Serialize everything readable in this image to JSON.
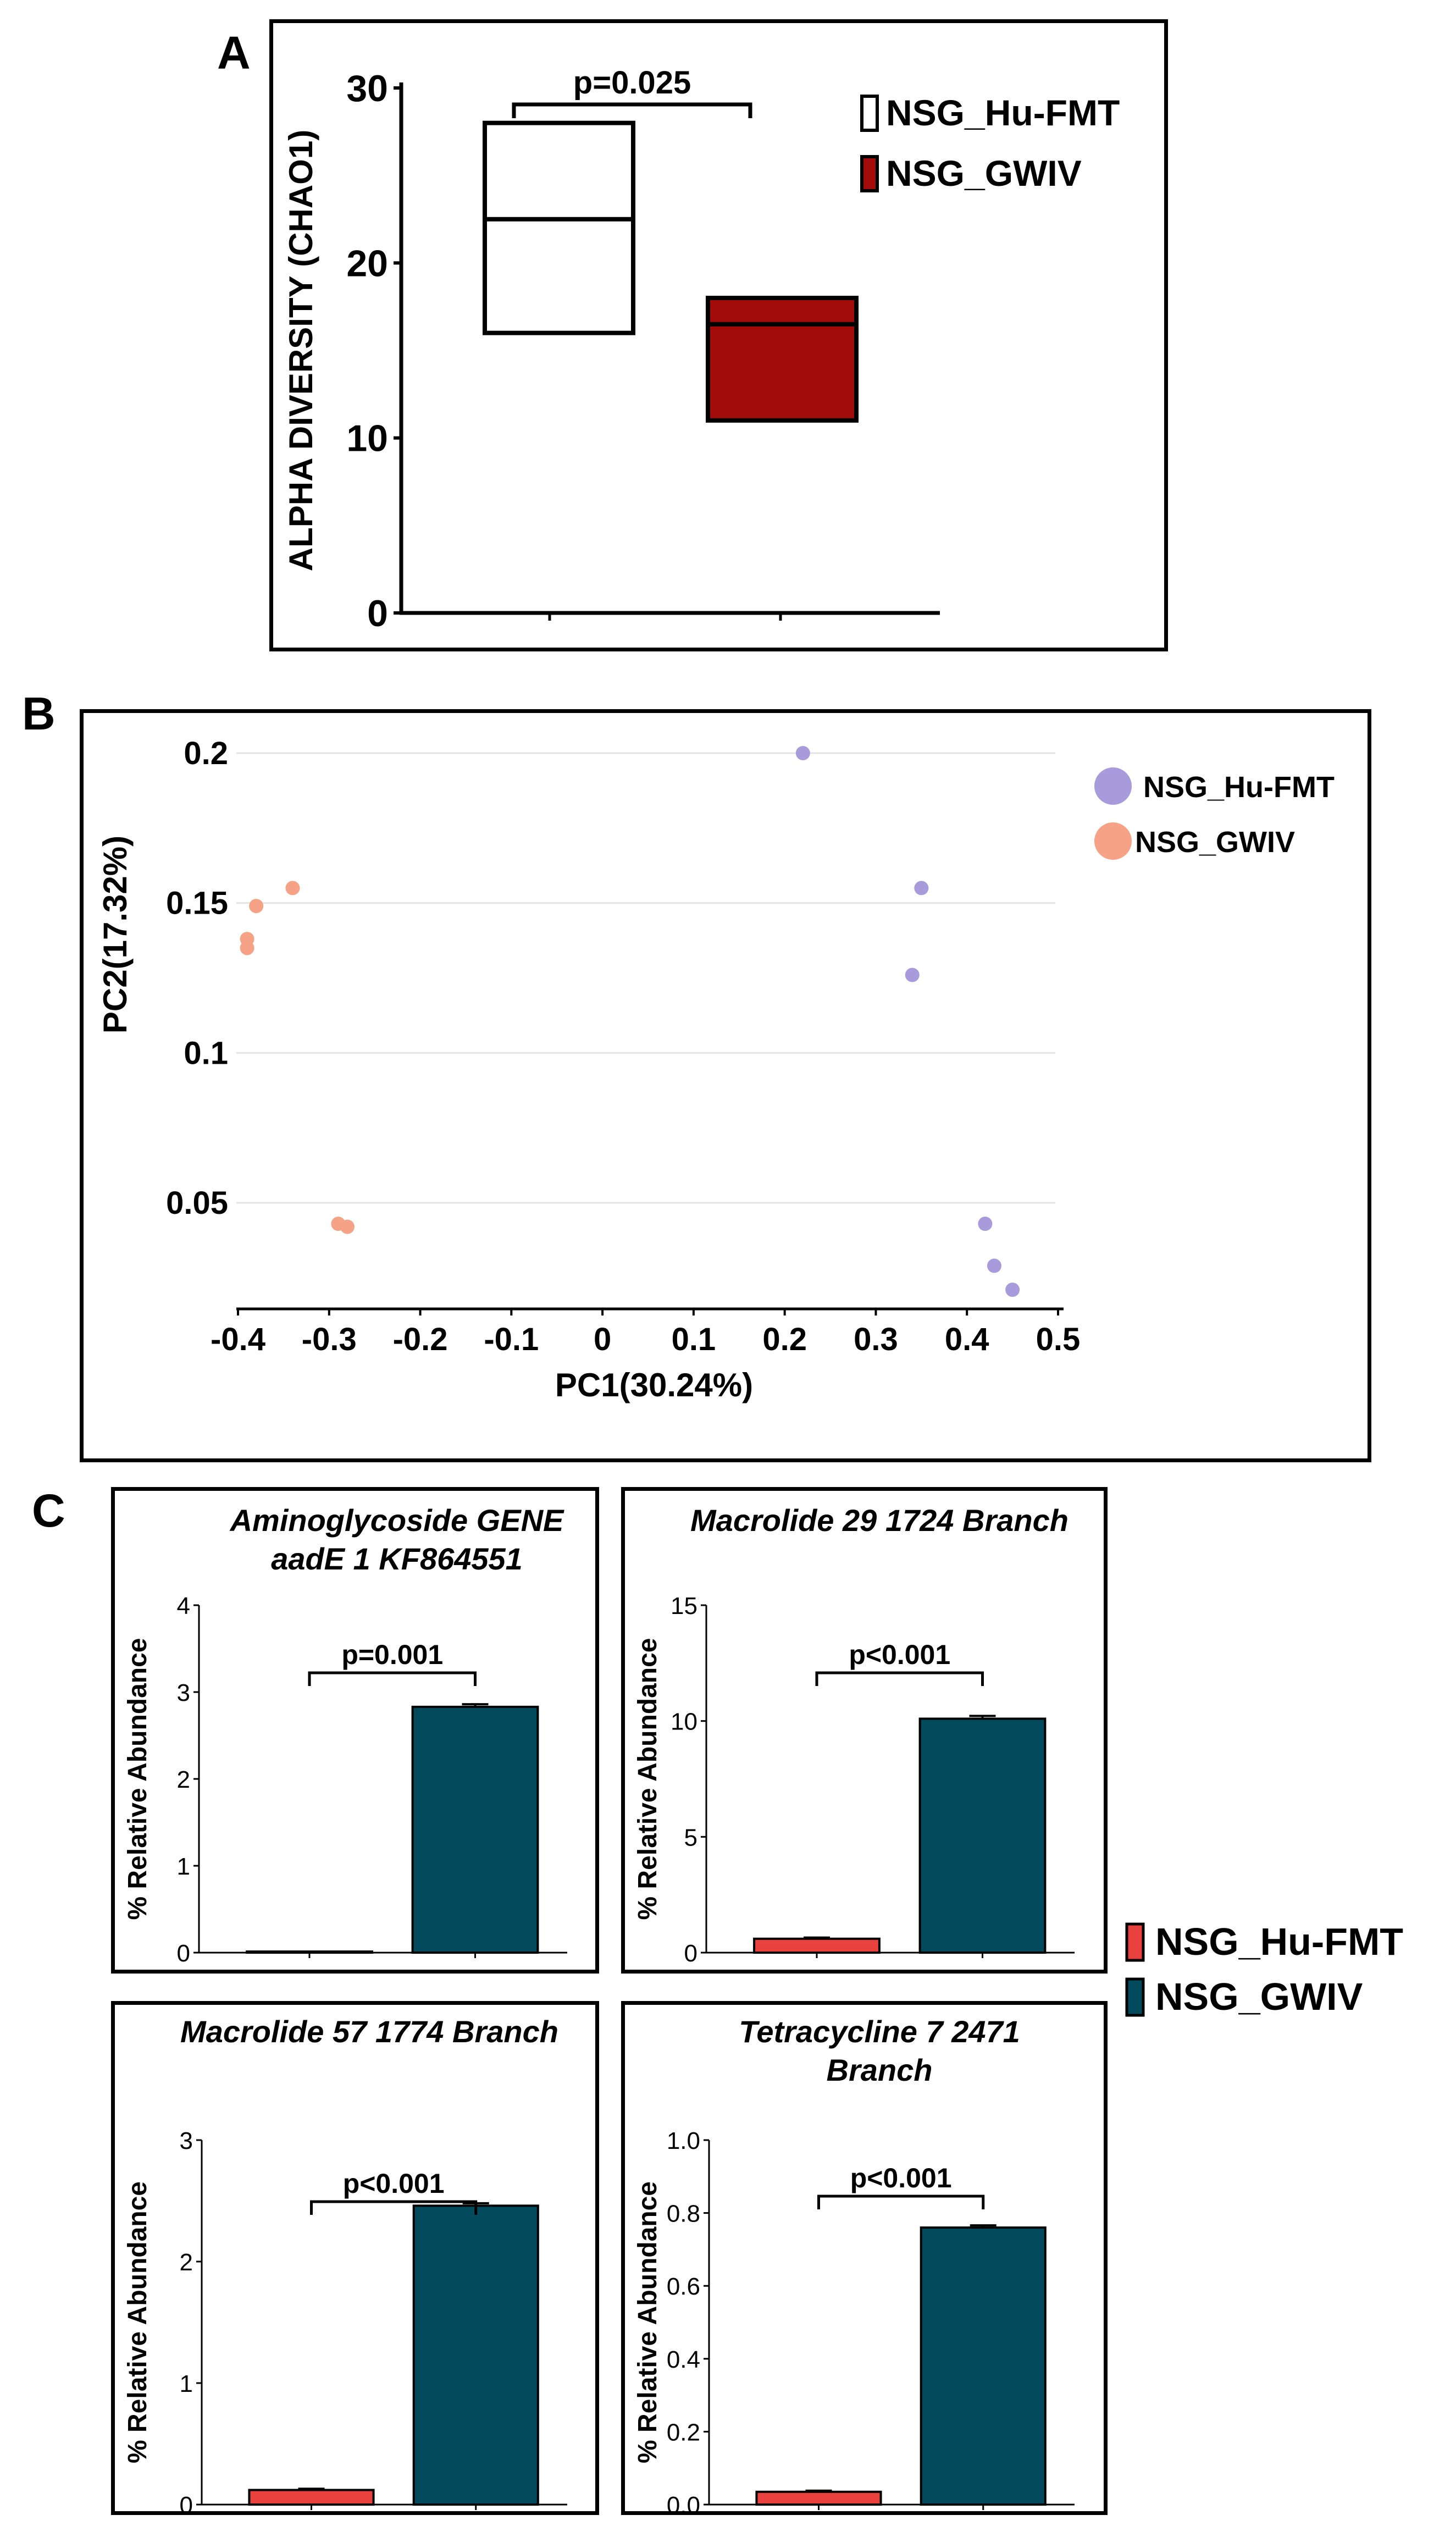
{
  "panels": {
    "a": {
      "letter": "A"
    },
    "b": {
      "letter": "B"
    },
    "c": {
      "letter": "C"
    }
  },
  "chart_data": [
    {
      "type": "box",
      "id": "panel-a",
      "ylabel": "ALPHA DIVERSITY (CHAO1)",
      "ylim": [
        0,
        30
      ],
      "yticks": [
        0,
        10,
        20,
        30
      ],
      "legend": [
        {
          "name": "NSG_Hu-FMT",
          "color": "#ffffff"
        },
        {
          "name": "NSG_GWIV",
          "color": "#a30a0a"
        }
      ],
      "boxes": [
        {
          "group": "NSG_Hu-FMT",
          "q1": 16,
          "median": 22.5,
          "q3": 28
        },
        {
          "group": "NSG_GWIV",
          "q1": 11,
          "median": 16.5,
          "q3": 18
        }
      ],
      "annotation": "p=0.025"
    },
    {
      "type": "scatter",
      "id": "panel-b",
      "xlabel": "PC1(30.24%)",
      "ylabel": "PC2(17.32%)",
      "xlim": [
        -0.4,
        0.5
      ],
      "ylim": [
        0.02,
        0.2
      ],
      "xticks": [
        "-0.4",
        "-0.3",
        "-0.2",
        "-0.1",
        "0",
        "0.1",
        "0.2",
        "0.3",
        "0.4",
        "0.5"
      ],
      "yticks": [
        "0.05",
        "0.1",
        "0.15",
        "0.2"
      ],
      "series": [
        {
          "name": "NSG_Hu-FMT",
          "color": "#a79bdc",
          "points": [
            [
              0.22,
              0.2
            ],
            [
              0.35,
              0.155
            ],
            [
              0.34,
              0.126
            ],
            [
              0.42,
              0.043
            ],
            [
              0.43,
              0.029
            ],
            [
              0.45,
              0.021
            ]
          ]
        },
        {
          "name": "NSG_GWIV",
          "color": "#f5a286",
          "points": [
            [
              -0.38,
              0.149
            ],
            [
              -0.34,
              0.155
            ],
            [
              -0.39,
              0.138
            ],
            [
              -0.39,
              0.135
            ],
            [
              -0.29,
              0.043
            ],
            [
              -0.28,
              0.042
            ]
          ]
        }
      ]
    },
    {
      "type": "bar",
      "id": "panel-c1",
      "title": [
        "Aminoglycoside GENE",
        "aadE 1 KF864551"
      ],
      "ylabel": "% Relative Abundance",
      "ylim": [
        0,
        4
      ],
      "yticks": [
        "0",
        "1",
        "2",
        "3",
        "4"
      ],
      "categories": [
        "NSG_Hu-FMT",
        "NSG_GWIV"
      ],
      "values": [
        0.0,
        2.83
      ],
      "errors": [
        0.0,
        0.03
      ],
      "annotation": "p=0.001"
    },
    {
      "type": "bar",
      "id": "panel-c2",
      "title": [
        "Macrolide 29 1724 Branch"
      ],
      "ylabel": "% Relative Abundance",
      "ylim": [
        0,
        15
      ],
      "yticks": [
        "0",
        "5",
        "10",
        "15"
      ],
      "categories": [
        "NSG_Hu-FMT",
        "NSG_GWIV"
      ],
      "values": [
        0.6,
        10.1
      ],
      "errors": [
        0.05,
        0.12
      ],
      "annotation": "p<0.001"
    },
    {
      "type": "bar",
      "id": "panel-c3",
      "title": [
        "Macrolide 57 1774 Branch"
      ],
      "ylabel": "% Relative Abundance",
      "ylim": [
        0,
        3
      ],
      "yticks": [
        "0",
        "1",
        "2",
        "3"
      ],
      "categories": [
        "NSG_Hu-FMT",
        "NSG_GWIV"
      ],
      "values": [
        0.12,
        2.46
      ],
      "errors": [
        0.01,
        0.02
      ],
      "annotation": "p<0.001"
    },
    {
      "type": "bar",
      "id": "panel-c4",
      "title": [
        "Tetracycline 7 2471",
        "Branch"
      ],
      "ylabel": "% Relative Abundance",
      "ylim": [
        0,
        1.0
      ],
      "yticks": [
        "0.0",
        "0.2",
        "0.4",
        "0.6",
        "0.8",
        "1.0"
      ],
      "categories": [
        "NSG_Hu-FMT",
        "NSG_GWIV"
      ],
      "values": [
        0.035,
        0.76
      ],
      "errors": [
        0.003,
        0.006
      ],
      "annotation": "p<0.001"
    }
  ],
  "legend_c": [
    {
      "name": "NSG_Hu-FMT",
      "color": "#e8413e"
    },
    {
      "name": "NSG_GWIV",
      "color": "#034a5d"
    }
  ]
}
